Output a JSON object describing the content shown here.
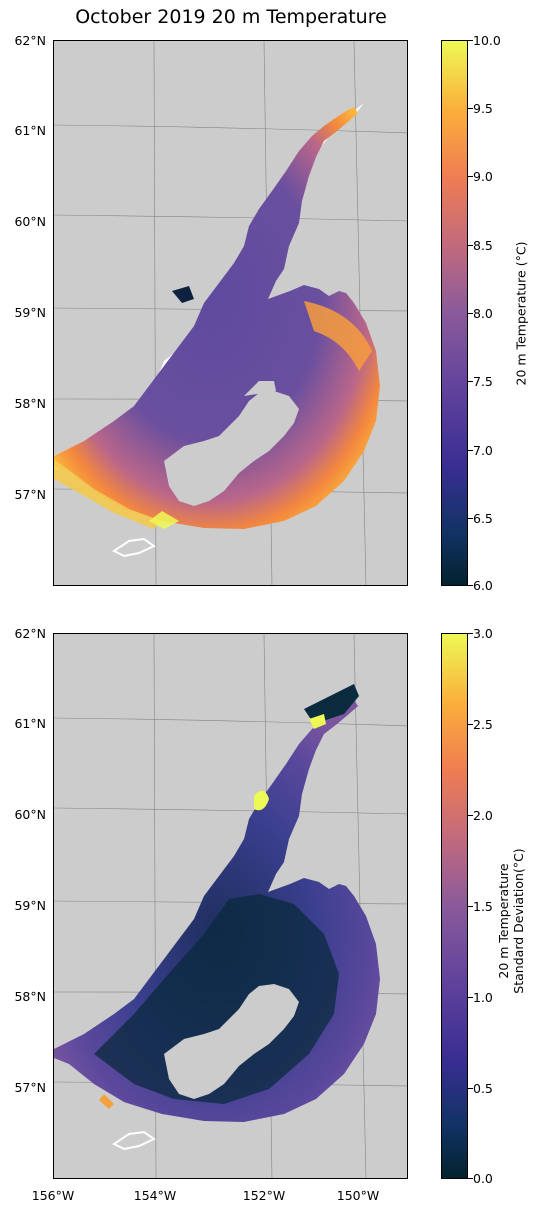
{
  "title": "October 2019 20 m Temperature",
  "panels": [
    {
      "lat_ticks": [
        "62°N",
        "61°N",
        "60°N",
        "59°N",
        "58°N",
        "57°N"
      ],
      "colorbar": {
        "label": "20 m Temperature (°C)",
        "ticks": [
          "10.0",
          "9.5",
          "9.0",
          "8.5",
          "8.0",
          "7.5",
          "7.0",
          "6.5",
          "6.0"
        ],
        "range": [
          6.0,
          10.0
        ]
      }
    },
    {
      "lat_ticks": [
        "62°N",
        "61°N",
        "60°N",
        "59°N",
        "58°N",
        "57°N"
      ],
      "lon_ticks": [
        "156°W",
        "154°W",
        "152°W",
        "150°W"
      ],
      "colorbar": {
        "label_line1": "20 m Temperature",
        "label_line2": "Standard Deviation(°C)",
        "ticks": [
          "3.0",
          "2.5",
          "2.0",
          "1.5",
          "1.0",
          "0.5",
          "0.0"
        ],
        "range": [
          0.0,
          3.0
        ]
      }
    }
  ],
  "colormap": "thermal",
  "colors": {
    "land": "#cccccc",
    "ocean_white": "#ffffff"
  }
}
